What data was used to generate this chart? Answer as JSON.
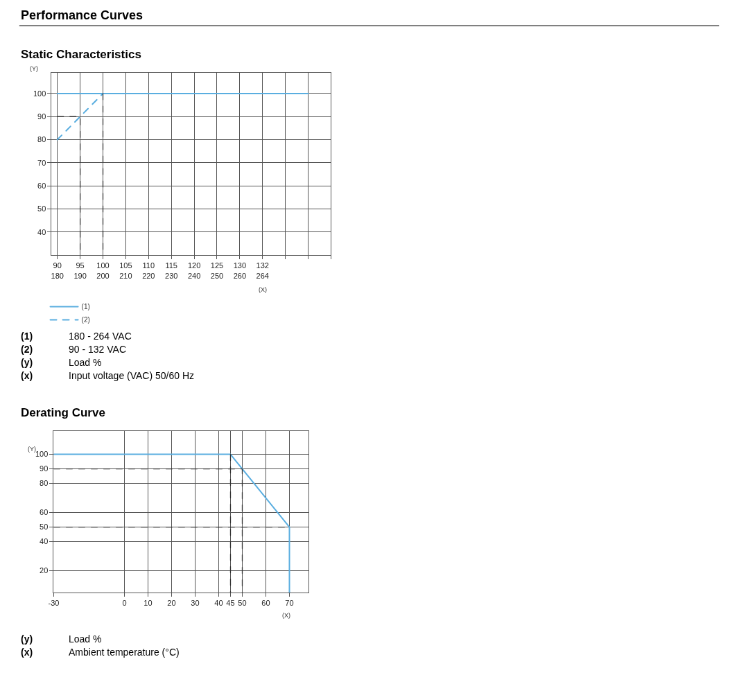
{
  "chart_data": [
    {
      "type": "line",
      "title": "Performance Curves",
      "subtitle": "Static Characteristics",
      "xlabel": "(X)",
      "ylabel": "(Y)",
      "categories": [
        "90\n180",
        "95\n190",
        "100\n200",
        "105\n210",
        "110\n220",
        "115\n230",
        "120\n240",
        "125\n250",
        "130\n260",
        "132\n264",
        null,
        null,
        null
      ],
      "ylim": [
        30,
        109
      ],
      "yticks": [
        40,
        50,
        60,
        70,
        80,
        90,
        100
      ],
      "grid": true,
      "legend": "bottom left",
      "series": [
        {
          "name": "(1)",
          "color": "#5aaee0",
          "line_style": "solid",
          "values": [
            100,
            100,
            100,
            100,
            100,
            100,
            100,
            100,
            100,
            100,
            100,
            100,
            null
          ]
        },
        {
          "name": "(2)",
          "color": "#5aaee0",
          "line_style": "dashed",
          "values": [
            80,
            90,
            100,
            null,
            null,
            null,
            null,
            null,
            null,
            null,
            null,
            null,
            null
          ]
        },
        {
          "color": "#333333",
          "line_style": "dashed",
          "x": [
            "90\n180",
            "95\n190",
            "95\n190"
          ],
          "values": [
            90,
            90,
            30
          ]
        },
        {
          "color": "#333333",
          "line_style": "dashed",
          "x": [
            "100\n200",
            "100\n200"
          ],
          "values": [
            100,
            30
          ]
        }
      ],
      "annotations": [
        "(1) 180 - 264 VAC",
        "(2) 90 - 132 VAC",
        "(y) Load %",
        "(x) Input voltage (VAC) 50/60 Hz"
      ]
    },
    {
      "type": "line",
      "title": "Derating Curve",
      "xlabel": "(X)",
      "ylabel": "(Y)",
      "xlim": [
        -30,
        78
      ],
      "xticks": [
        -30,
        0,
        10,
        20,
        30,
        40,
        45,
        50,
        60,
        70
      ],
      "ylim": [
        5,
        116
      ],
      "yticks": [
        20,
        40,
        50,
        60,
        80,
        90,
        100
      ],
      "grid": true,
      "legend": false,
      "series": [
        {
          "color": "#5aaee0",
          "line_style": "solid",
          "x": [
            -30,
            45,
            50,
            70,
            70
          ],
          "values": [
            100,
            100,
            90,
            50,
            5
          ]
        },
        {
          "color": "#333333",
          "line_style": "dashed",
          "x": [
            -30,
            50,
            50
          ],
          "values": [
            90,
            90,
            5
          ]
        },
        {
          "color": "#333333",
          "line_style": "dashed",
          "x": [
            45,
            45
          ],
          "values": [
            100,
            5
          ]
        },
        {
          "color": "#333333",
          "line_style": "dashed",
          "x": [
            -30,
            70
          ],
          "values": [
            50,
            50
          ]
        }
      ],
      "annotations": [
        "(y) Load %",
        "(x) Ambient temperature (°C)"
      ]
    }
  ]
}
